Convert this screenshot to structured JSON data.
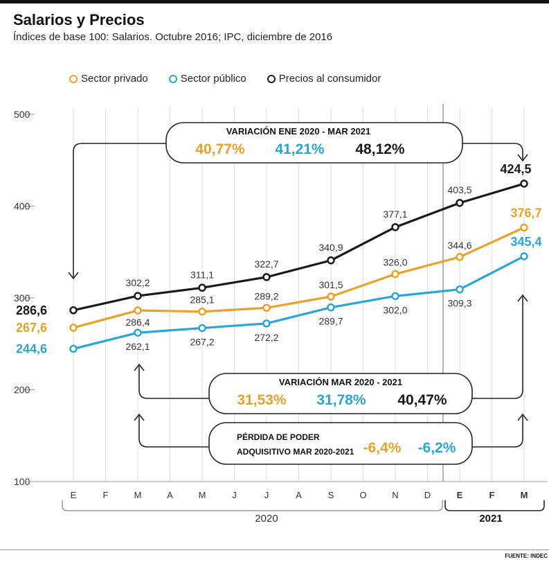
{
  "header": {
    "title": "Salarios y Precios",
    "subtitle": "Índices de base 100: Salarios. Octubre 2016; IPC, diciembre de 2016"
  },
  "colors": {
    "privado": "#e9a227",
    "publico": "#2aa6d6",
    "precios": "#1a1a1a",
    "grid": "#dddddd"
  },
  "chart_data": {
    "type": "line",
    "categories": [
      "E",
      "F",
      "M",
      "A",
      "M",
      "J",
      "J",
      "A",
      "S",
      "O",
      "N",
      "D",
      "E",
      "F",
      "M"
    ],
    "years": [
      "2020",
      "2021"
    ],
    "ylim": [
      100,
      500
    ],
    "yticks": [
      100,
      200,
      300,
      400,
      500
    ],
    "series": [
      {
        "key": "precios",
        "name": "Precios al consumidor",
        "points": [
          {
            "i": 0,
            "v": 286.6,
            "label": "286,6"
          },
          {
            "i": 2,
            "v": 302.2,
            "label": "302,2"
          },
          {
            "i": 4,
            "v": 311.1,
            "label": "311,1"
          },
          {
            "i": 6,
            "v": 322.7,
            "label": "322,7"
          },
          {
            "i": 8,
            "v": 340.9,
            "label": "340,9"
          },
          {
            "i": 10,
            "v": 377.1,
            "label": "377,1"
          },
          {
            "i": 12,
            "v": 403.5,
            "label": "403,5"
          },
          {
            "i": 14,
            "v": 424.5,
            "label": "424,5"
          }
        ]
      },
      {
        "key": "privado",
        "name": "Sector privado",
        "points": [
          {
            "i": 0,
            "v": 267.6,
            "label": "267,6"
          },
          {
            "i": 2,
            "v": 286.4,
            "label": "286,4"
          },
          {
            "i": 4,
            "v": 285.1,
            "label": "285,1"
          },
          {
            "i": 6,
            "v": 289.2,
            "label": "289,2"
          },
          {
            "i": 8,
            "v": 301.5,
            "label": "301,5"
          },
          {
            "i": 10,
            "v": 326.0,
            "label": "326,0"
          },
          {
            "i": 12,
            "v": 344.6,
            "label": "344,6"
          },
          {
            "i": 14,
            "v": 376.7,
            "label": "376,7"
          }
        ]
      },
      {
        "key": "publico",
        "name": "Sector público",
        "points": [
          {
            "i": 0,
            "v": 244.6,
            "label": "244,6"
          },
          {
            "i": 2,
            "v": 262.1,
            "label": "262,1"
          },
          {
            "i": 4,
            "v": 267.2,
            "label": "267,2"
          },
          {
            "i": 6,
            "v": 272.2,
            "label": "272,2"
          },
          {
            "i": 8,
            "v": 289.7,
            "label": "289,7"
          },
          {
            "i": 10,
            "v": 302.0,
            "label": "302,0"
          },
          {
            "i": 12,
            "v": 309.3,
            "label": "309,3"
          },
          {
            "i": 14,
            "v": 345.4,
            "label": "345,4"
          }
        ]
      }
    ]
  },
  "callouts": {
    "variacion_ene2020_mar2021": {
      "title": "VARIACIÓN ENE 2020 - MAR 2021",
      "privado": "40,77%",
      "publico": "41,21%",
      "precios": "48,12%"
    },
    "variacion_mar2020_2021": {
      "title": "VARIACIÓN MAR 2020 - 2021",
      "privado": "31,53%",
      "publico": "31,78%",
      "precios": "40,47%"
    },
    "perdida": {
      "title_line1": "PÉRDIDA DE PODER",
      "title_line2": "ADQUISITIVO MAR 2020-2021",
      "privado": "-6,4%",
      "publico": "-6,2%"
    }
  },
  "source": "FUENTE: INDEC"
}
